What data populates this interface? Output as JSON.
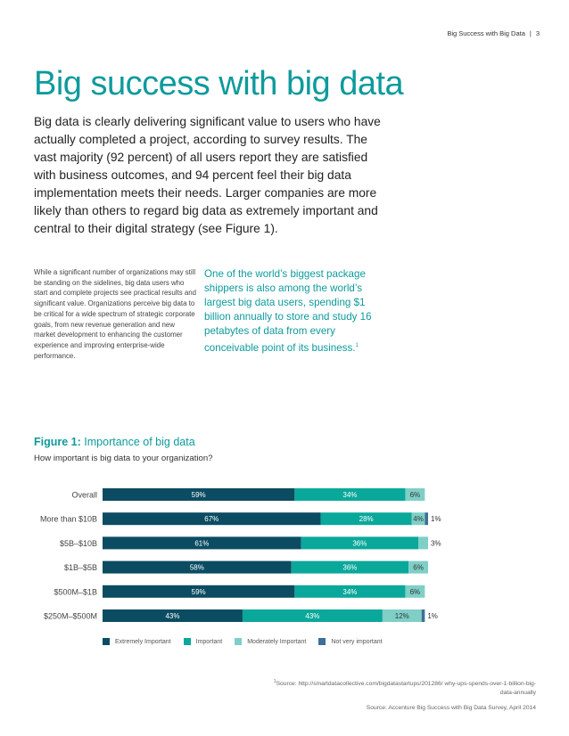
{
  "header": {
    "title": "Big Success with Big Data",
    "page": "3"
  },
  "title": "Big success with big data",
  "lead": "Big data is clearly delivering significant value to users who have actually completed a project, according to survey results. The vast majority (92 percent) of all users report they are satisfied with business outcomes, and 94 percent feel their big data implementation meets their needs. Larger companies are more likely than others to regard big data as extremely important and central to their digital strategy (see Figure 1).",
  "body": "While a significant number of organizations may still be standing on the sidelines, big data users who start and complete projects see practical results and significant value. Organizations perceive big data to be critical for a wide spectrum of strategic corporate goals, from new revenue generation and new market development to enhancing the customer experience and improving enterprise-wide performance.",
  "quote": {
    "text": "One of the world’s biggest package shippers is also among the world’s largest big data users, spending $1 billion annually to store and study 16 petabytes of data from every conceivable point of its business.",
    "ref": "1"
  },
  "figure": {
    "label": "Figure 1:",
    "title": "Importance of big data",
    "subtitle": "How important is big data to your organization?"
  },
  "colors": {
    "accent": "#0e9a9c",
    "extremely": "#0b4c62",
    "important": "#0aa89a",
    "moderately": "#7fcfc6",
    "not_very": "#3f6f96"
  },
  "chart_data": {
    "type": "bar",
    "orientation": "horizontal",
    "stacked": true,
    "categories": [
      "Overall",
      "More than $10B",
      "$5B–$10B",
      "$1B–$5B",
      "$500M–$1B",
      "$250M–$500M"
    ],
    "series": [
      {
        "name": "Extremely Important",
        "values": [
          59,
          67,
          61,
          58,
          59,
          43
        ],
        "color": "#0b4c62"
      },
      {
        "name": "Important",
        "values": [
          34,
          28,
          36,
          36,
          34,
          43
        ],
        "color": "#0aa89a"
      },
      {
        "name": "Moderately Important",
        "values": [
          6,
          4,
          3,
          6,
          6,
          12
        ],
        "color": "#7fcfc6"
      },
      {
        "name": "Not very important",
        "values": [
          0,
          1,
          0,
          0,
          0,
          1
        ],
        "color": "#3f6f96"
      }
    ],
    "xlim": [
      0,
      100
    ],
    "legend": "bottom"
  },
  "footnote": {
    "mark": "1",
    "text": "Source: http://smartdatacollective.com/bigdatastartups/201286/ why-ups-spends-over-1-billion-big-data-annually"
  },
  "source": "Source: Accenture Big Success with Big Data Survey, April 2014"
}
